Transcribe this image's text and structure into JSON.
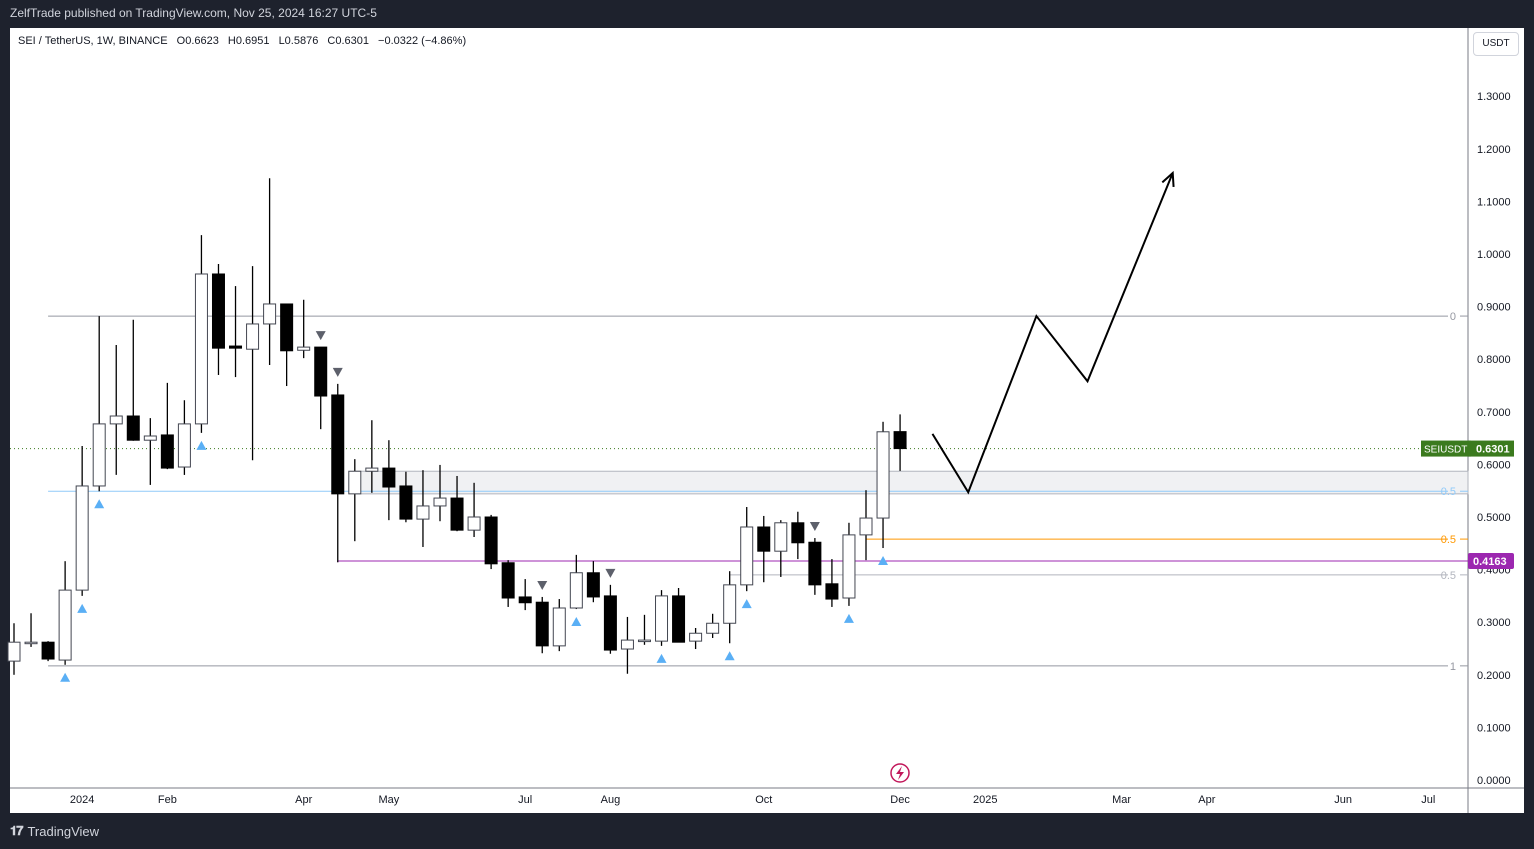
{
  "header": {
    "publisher": "ZelfTrade published on TradingView.com, Nov 25, 2024 16:27 UTC-5"
  },
  "legend": {
    "symbol": "SEI / TetherUS, 1W, BINANCE",
    "open": "O0.6623",
    "high": "H0.6951",
    "low": "L0.5876",
    "close": "C0.6301",
    "change": "−0.0322 (−4.86%)"
  },
  "currency_button": "USDT",
  "footer": {
    "brand": "TradingView"
  },
  "colors": {
    "up": "#ffffff",
    "down": "#000000",
    "up_marker": "#5aaff5",
    "down_marker": "#5d606b",
    "price_tag": "#3b7a1e",
    "purple": "#9c27b0",
    "orange": "#ff9800",
    "fib_blue": "#90caf9",
    "gray": "#9598a1"
  },
  "chart_data": {
    "type": "candlestick",
    "title": "SEI / TetherUS, 1W, BINANCE",
    "ylim": [
      0,
      1.3
    ],
    "y_ticks": [
      "1.3000",
      "1.2000",
      "1.1000",
      "1.0000",
      "0.9000",
      "0.8000",
      "0.7000",
      "0.6000",
      "0.5000",
      "0.4000",
      "0.3000",
      "0.2000",
      "0.1000",
      "0.0000"
    ],
    "x_ticks": [
      {
        "label": "2024",
        "week": 5
      },
      {
        "label": "Feb",
        "week": 10
      },
      {
        "label": "Apr",
        "week": 18
      },
      {
        "label": "May",
        "week": 23
      },
      {
        "label": "Jul",
        "week": 31
      },
      {
        "label": "Aug",
        "week": 36
      },
      {
        "label": "Oct",
        "week": 45
      },
      {
        "label": "Dec",
        "week": 53
      },
      {
        "label": "2025",
        "week": 58
      },
      {
        "label": "Mar",
        "week": 66
      },
      {
        "label": "Apr",
        "week": 71
      },
      {
        "label": "Jun",
        "week": 79
      },
      {
        "label": "Jul",
        "week": 84
      }
    ],
    "ohlc": [
      [
        0.226,
        0.298,
        0.2,
        0.262
      ],
      [
        0.262,
        0.317,
        0.253,
        0.262
      ],
      [
        0.262,
        0.264,
        0.226,
        0.23
      ],
      [
        0.228,
        0.416,
        0.219,
        0.361
      ],
      [
        0.361,
        0.635,
        0.35,
        0.559
      ],
      [
        0.559,
        0.882,
        0.549,
        0.677
      ],
      [
        0.677,
        0.827,
        0.58,
        0.692
      ],
      [
        0.692,
        0.875,
        0.645,
        0.646
      ],
      [
        0.646,
        0.688,
        0.561,
        0.654
      ],
      [
        0.656,
        0.755,
        0.591,
        0.593
      ],
      [
        0.595,
        0.722,
        0.58,
        0.677
      ],
      [
        0.677,
        1.036,
        0.66,
        0.962
      ],
      [
        0.962,
        0.981,
        0.77,
        0.821
      ],
      [
        0.825,
        0.939,
        0.766,
        0.821
      ],
      [
        0.819,
        0.977,
        0.608,
        0.867
      ],
      [
        0.867,
        1.144,
        0.789,
        0.905
      ],
      [
        0.905,
        0.905,
        0.749,
        0.816
      ],
      [
        0.817,
        0.913,
        0.802,
        0.823
      ],
      [
        0.823,
        0.823,
        0.667,
        0.73
      ],
      [
        0.732,
        0.753,
        0.414,
        0.544
      ],
      [
        0.544,
        0.61,
        0.454,
        0.587
      ],
      [
        0.587,
        0.684,
        0.546,
        0.593
      ],
      [
        0.593,
        0.646,
        0.494,
        0.557
      ],
      [
        0.559,
        0.586,
        0.49,
        0.496
      ],
      [
        0.496,
        0.589,
        0.443,
        0.521
      ],
      [
        0.521,
        0.599,
        0.492,
        0.536
      ],
      [
        0.536,
        0.578,
        0.473,
        0.475
      ],
      [
        0.475,
        0.565,
        0.462,
        0.5
      ],
      [
        0.5,
        0.504,
        0.401,
        0.411
      ],
      [
        0.413,
        0.418,
        0.329,
        0.346
      ],
      [
        0.348,
        0.382,
        0.323,
        0.337
      ],
      [
        0.338,
        0.348,
        0.241,
        0.255
      ],
      [
        0.255,
        0.344,
        0.245,
        0.327
      ],
      [
        0.327,
        0.428,
        0.325,
        0.394
      ],
      [
        0.394,
        0.416,
        0.338,
        0.348
      ],
      [
        0.35,
        0.371,
        0.24,
        0.247
      ],
      [
        0.249,
        0.31,
        0.202,
        0.266
      ],
      [
        0.266,
        0.314,
        0.257,
        0.266
      ],
      [
        0.264,
        0.361,
        0.255,
        0.35
      ],
      [
        0.35,
        0.365,
        0.262,
        0.262
      ],
      [
        0.264,
        0.289,
        0.249,
        0.279
      ],
      [
        0.279,
        0.316,
        0.27,
        0.298
      ],
      [
        0.298,
        0.397,
        0.26,
        0.371
      ],
      [
        0.371,
        0.519,
        0.359,
        0.481
      ],
      [
        0.481,
        0.502,
        0.376,
        0.435
      ],
      [
        0.435,
        0.494,
        0.386,
        0.489
      ],
      [
        0.489,
        0.51,
        0.42,
        0.451
      ],
      [
        0.452,
        0.46,
        0.352,
        0.371
      ],
      [
        0.373,
        0.42,
        0.329,
        0.344
      ],
      [
        0.346,
        0.489,
        0.331,
        0.466
      ],
      [
        0.466,
        0.551,
        0.418,
        0.498
      ],
      [
        0.498,
        0.681,
        0.441,
        0.662
      ],
      [
        0.6623,
        0.6951,
        0.5876,
        0.6301
      ]
    ],
    "up_markers": [
      3,
      4,
      5,
      11,
      33,
      38,
      42,
      43,
      49,
      51
    ],
    "down_markers": [
      18,
      19,
      31,
      35,
      47
    ],
    "last_price": {
      "symbol": "SEIUSDT",
      "value": "0.6301",
      "price": 0.6301
    },
    "levels": [
      {
        "label": "0",
        "price": 0.882,
        "from": 2,
        "color": "#9598a1"
      },
      {
        "label": "0.5",
        "price": 0.549,
        "from": 2,
        "color": "#90caf9"
      },
      {
        "label": "0.5",
        "price": 0.458,
        "from": 50,
        "color": "#ff9800"
      },
      {
        "label": "0.5",
        "price": 0.39,
        "from": 42,
        "color": "#b2b5be"
      },
      {
        "label": "1",
        "price": 0.217,
        "from": 2,
        "color": "#9598a1"
      }
    ],
    "purple_level": {
      "value": "0.4163",
      "price": 0.4163,
      "from": 19
    },
    "zone": {
      "top": 0.587,
      "bottom": 0.544,
      "from": 20
    },
    "projection": [
      [
        53.9,
        0.658
      ],
      [
        56,
        0.547
      ],
      [
        60,
        0.882
      ],
      [
        63,
        0.758
      ],
      [
        68,
        1.154
      ]
    ]
  }
}
